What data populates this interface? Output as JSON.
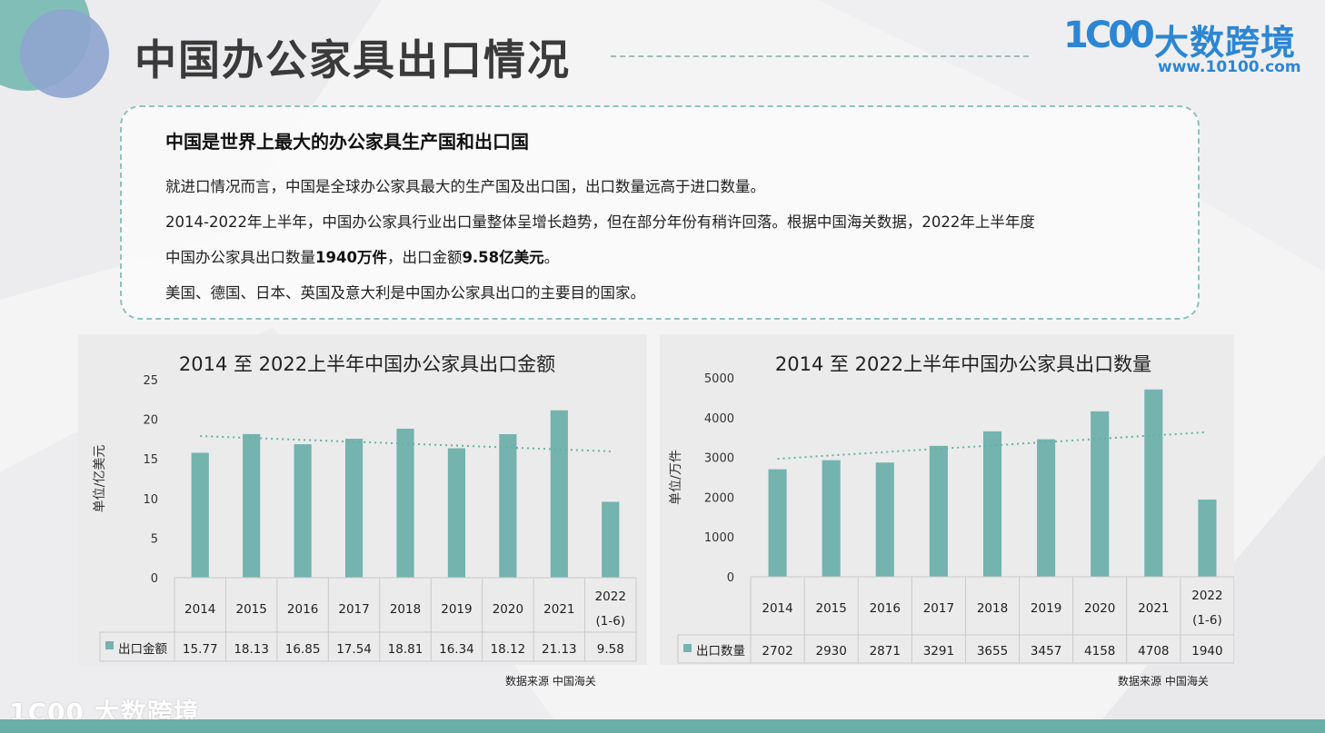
{
  "page": {
    "title": "中国办公家具出口情况",
    "logo_mark": "1C00",
    "logo_name": "大数跨境",
    "logo_url": "www.10100.com",
    "footer_logo": "1C00 大数跨境"
  },
  "summary": {
    "heading": "中国是世界上最大的办公家具生产国和出口国",
    "line1": "就进口情况而言，中国是全球办公家具最大的生产国及出口国，出口数量远高于进口数量。",
    "line2": "2014-2022年上半年，中国办公家具行业出口量整体呈增长趋势，但在部分年份有稍许回落。根据中国海关数据，2022年上半年度",
    "line3_pre": "中国办公家具出口数量",
    "line3_b1": "1940万件",
    "line3_mid": "，出口金额",
    "line3_b2": "9.58亿美元",
    "line3_end": "。",
    "line4": "美国、德国、日本、英国及意大利是中国办公家具出口的主要目的国家。"
  },
  "colors": {
    "bar": "#74b3ae",
    "trend": "#6aafa7",
    "accent": "#2c86d4"
  },
  "chart_data": [
    {
      "type": "bar",
      "title": "2014 至 2022上半年中国办公家具出口金额",
      "ylabel": "单位/亿美元",
      "series_name": "出口金额",
      "categories": [
        "2014",
        "2015",
        "2016",
        "2017",
        "2018",
        "2019",
        "2020",
        "2021",
        "2022"
      ],
      "category_sub": [
        "",
        "",
        "",
        "",
        "",
        "",
        "",
        "",
        "(1-6)"
      ],
      "values": [
        15.77,
        18.13,
        16.85,
        17.54,
        18.81,
        16.34,
        18.12,
        21.13,
        9.58
      ],
      "value_labels": [
        "15.77",
        "18.13",
        "16.85",
        "17.54",
        "18.81",
        "16.34",
        "18.12",
        "21.13",
        "9.58"
      ],
      "ylim": [
        0,
        25
      ],
      "yticks": [
        "0",
        "5",
        "10",
        "15",
        "20",
        "25"
      ],
      "trendline": true,
      "data_table": true,
      "source": "数据来源 中国海关"
    },
    {
      "type": "bar",
      "title": "2014 至 2022上半年中国办公家具出口数量",
      "ylabel": "单位/万件",
      "series_name": "出口数量",
      "categories": [
        "2014",
        "2015",
        "2016",
        "2017",
        "2018",
        "2019",
        "2020",
        "2021",
        "2022"
      ],
      "category_sub": [
        "",
        "",
        "",
        "",
        "",
        "",
        "",
        "",
        "(1-6)"
      ],
      "values": [
        2702,
        2930,
        2871,
        3291,
        3655,
        3457,
        4158,
        4708,
        1940
      ],
      "value_labels": [
        "2702",
        "2930",
        "2871",
        "3291",
        "3655",
        "3457",
        "4158",
        "4708",
        "1940"
      ],
      "ylim": [
        0,
        5000
      ],
      "yticks": [
        "0",
        "1000",
        "2000",
        "3000",
        "4000",
        "5000"
      ],
      "trendline": true,
      "data_table": true,
      "source": "数据来源 中国海关"
    }
  ]
}
